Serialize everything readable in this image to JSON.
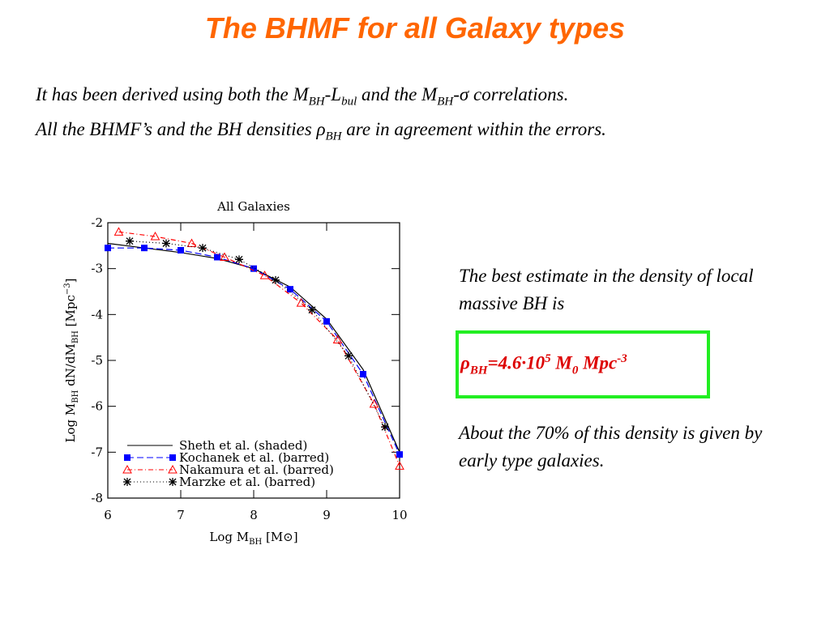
{
  "title": "The BHMF for all Galaxy types",
  "intro": {
    "line1": [
      "It has been derived using both the M",
      "BH",
      "-L",
      "bul",
      " and the M",
      "BH",
      "-σ correlations."
    ],
    "line2": [
      "All the BHMF’s and the BH densities ρ",
      "BH",
      " are in agreement within the errors."
    ]
  },
  "estimate": "The best estimate in the density of local massive BH is",
  "formula": [
    "ρ",
    "BH",
    "=4.6·10",
    "5",
    " M",
    "0",
    " Mpc",
    "-3"
  ],
  "fraction": "About the 70% of this density is given by early type galaxies.",
  "chart_data": {
    "type": "line",
    "title": "All Galaxies",
    "xlabel": [
      "Log M",
      "BH",
      " [M⊙]"
    ],
    "ylabel": [
      "Log M",
      "BH",
      " dN/dM",
      "BH",
      " [Mpc",
      "−3",
      "]"
    ],
    "xlim": [
      6,
      10
    ],
    "ylim": [
      -8,
      -2
    ],
    "xticks": [
      6,
      7,
      8,
      9,
      10
    ],
    "yticks": [
      -8,
      -7,
      -6,
      -5,
      -4,
      -3,
      -2
    ],
    "legend": "lower left",
    "series": [
      {
        "name": "Sheth et al. (shaded)",
        "color": "#000000",
        "marker": "none",
        "dash": "solid",
        "x": [
          6,
          6.5,
          7,
          7.5,
          8,
          8.5,
          9,
          9.5,
          10
        ],
        "values": [
          -2.45,
          -2.55,
          -2.65,
          -2.78,
          -3.0,
          -3.4,
          -4.1,
          -5.2,
          -7.0
        ]
      },
      {
        "name": "Kochanek et al. (barred)",
        "color": "#0000ff",
        "marker": "square",
        "dash": "dashed",
        "x": [
          6,
          6.5,
          7,
          7.5,
          8,
          8.5,
          9,
          9.5,
          10
        ],
        "values": [
          -2.55,
          -2.55,
          -2.6,
          -2.75,
          -3.0,
          -3.45,
          -4.15,
          -5.3,
          -7.05
        ]
      },
      {
        "name": "Nakamura et al. (barred)",
        "color": "#ff0000",
        "marker": "triangle",
        "dash": "dashdot",
        "x": [
          6.15,
          6.65,
          7.15,
          7.6,
          8.15,
          8.65,
          9.15,
          9.65,
          10
        ],
        "values": [
          -2.2,
          -2.3,
          -2.45,
          -2.75,
          -3.15,
          -3.75,
          -4.55,
          -5.95,
          -7.3
        ]
      },
      {
        "name": "Marzke et al. (barred)",
        "color": "#000000",
        "marker": "star",
        "dash": "dotted",
        "x": [
          6.3,
          6.8,
          7.3,
          7.8,
          8.3,
          8.8,
          9.3,
          9.8
        ],
        "values": [
          -2.4,
          -2.45,
          -2.55,
          -2.8,
          -3.25,
          -3.9,
          -4.9,
          -6.45
        ]
      }
    ]
  }
}
